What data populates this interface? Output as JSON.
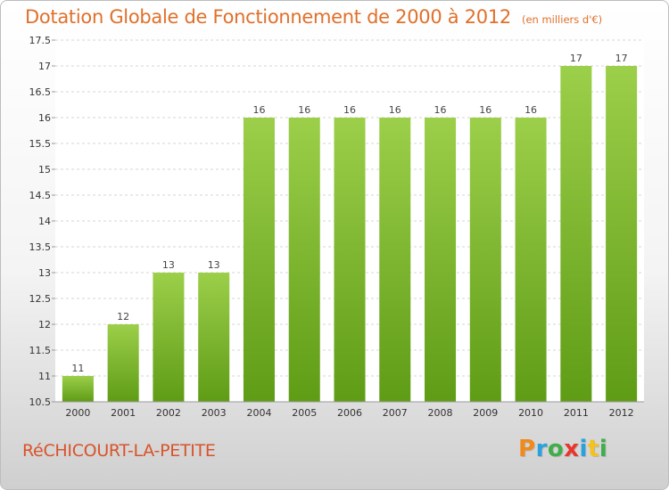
{
  "title": "Dotation Globale de Fonctionnement de 2000 à 2012",
  "subtitle": "(en milliers d'€)",
  "commune": "RéCHICOURT-LA-PETITE",
  "logo": {
    "text": "Proxiti",
    "colors": [
      "#f08a1c",
      "#2aa1dd",
      "#3fae49",
      "#e8362d",
      "#2aa1dd",
      "#f3c21b",
      "#3fae49"
    ]
  },
  "colors": {
    "bar_top": "#9ccf4a",
    "bar_bottom": "#5f9c16",
    "title": "#e0702a",
    "commune": "#d8532b"
  },
  "chart_data": {
    "type": "bar",
    "categories": [
      "2000",
      "2001",
      "2002",
      "2003",
      "2004",
      "2005",
      "2006",
      "2007",
      "2008",
      "2009",
      "2010",
      "2011",
      "2012"
    ],
    "values": [
      11,
      12,
      13,
      13,
      16,
      16,
      16,
      16,
      16,
      16,
      16,
      17,
      17
    ],
    "data_labels": [
      "11",
      "12",
      "13",
      "13",
      "16",
      "16",
      "16",
      "16",
      "16",
      "16",
      "16",
      "17",
      "17"
    ],
    "ylim": [
      10.5,
      17.5
    ],
    "yticks": [
      10.5,
      11,
      11.5,
      12,
      12.5,
      13,
      13.5,
      14,
      14.5,
      15,
      15.5,
      16,
      16.5,
      17,
      17.5
    ],
    "ytick_labels": [
      "10.5",
      "11",
      "11.5",
      "12",
      "12.5",
      "13",
      "13.5",
      "14",
      "14.5",
      "15",
      "15.5",
      "16",
      "16.5",
      "17",
      "17.5"
    ],
    "grid": true,
    "title": "Dotation Globale de Fonctionnement de 2000 à 2012",
    "xlabel": "",
    "ylabel": ""
  }
}
